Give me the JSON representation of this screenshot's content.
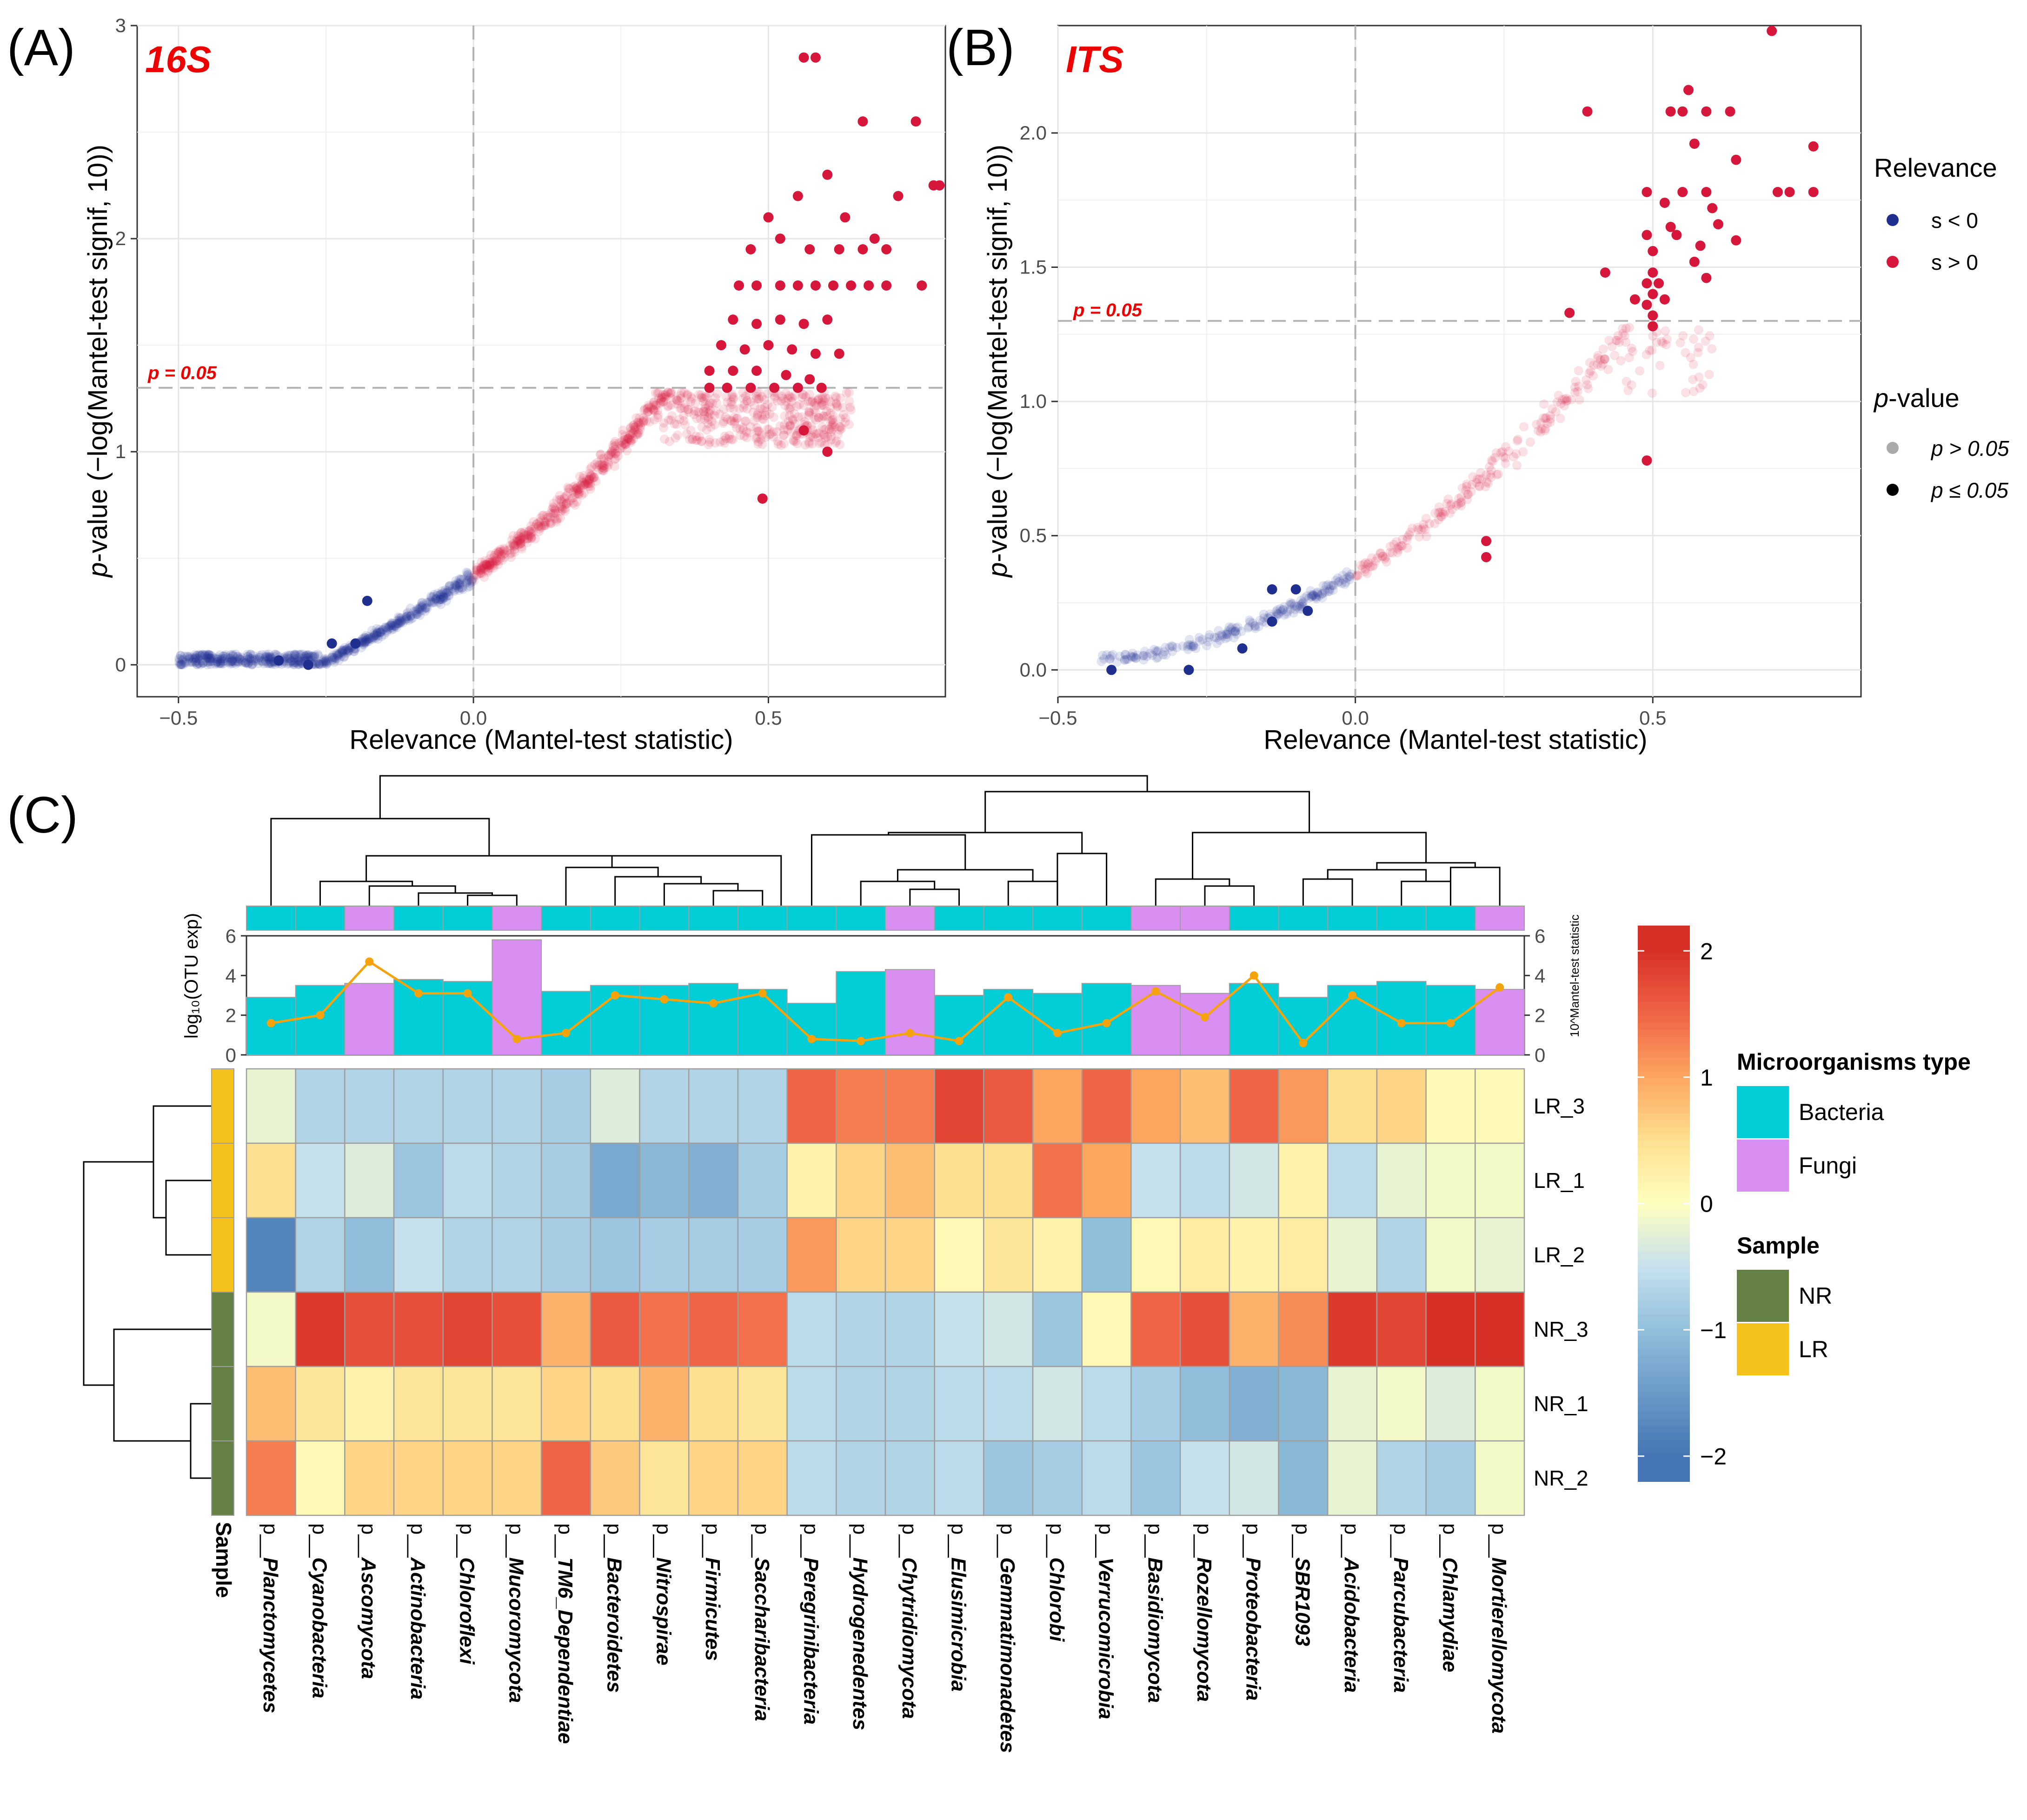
{
  "panels": {
    "A": {
      "tag": "(A)",
      "title": "16S"
    },
    "B": {
      "tag": "(B)",
      "title": "ITS"
    },
    "C": {
      "tag": "(C)"
    }
  },
  "colors": {
    "neg": "#1f2f8f",
    "pos": "#d6163a",
    "bacteria": "#00cdd6",
    "fungi": "#d98ef2",
    "nr": "#668146",
    "lr": "#f5c21b",
    "line": "#f5a30c",
    "title_red": "#ee0000"
  },
  "scatter_common": {
    "xlabel_main": "Relevance",
    "xlabel_paren": "(Mantel-test statistic)",
    "ylabel_p": "p",
    "ylabel_rest": "-value (−log(Mantel-test signif, 10))",
    "sig_label": "p = 0.05"
  },
  "legend_scatter": {
    "relevance_title": "Relevance",
    "relevance_items": [
      "s < 0",
      "s > 0"
    ],
    "pvalue_title_p": "p",
    "pvalue_title_rest": "-value",
    "pvalue_items": [
      "p > 0.05",
      "p ≤ 0.05"
    ]
  },
  "legend_heatmap": {
    "type_title": "Microorganisms type",
    "type_items": [
      "Bacteria",
      "Fungi"
    ],
    "sample_title": "Sample",
    "sample_items": [
      "NR",
      "LR"
    ],
    "colorbar_ticks": [
      "2",
      "1",
      "0",
      "−1",
      "−2"
    ]
  },
  "bar_axis": {
    "left_label": "log₁₀(OTU exp)",
    "right_label": "10^Mantel-test statistic",
    "ticks": [
      "6",
      "4",
      "2",
      "0"
    ]
  },
  "sample_axis_label": "Sample",
  "chart_data": [
    {
      "panel": "A",
      "type": "scatter",
      "title": "16S",
      "xlabel": "Relevance (Mantel-test statistic)",
      "ylabel": "p-value (−log(Mantel-test signif, 10))",
      "xlim": [
        -0.57,
        0.8
      ],
      "ylim": [
        -0.15,
        3
      ],
      "xticks": [
        -0.5,
        0.0,
        0.5
      ],
      "yticks": [
        0,
        1,
        2,
        3
      ],
      "threshold_y": 1.3,
      "threshold_label": "p = 0.05",
      "curve": {
        "model": "y = 0.42 + 1.9*x + 1.6*x^2 + 2.0*x^3 (approx. trend)"
      },
      "significant_points": [
        [
          0.56,
          2.85
        ],
        [
          0.58,
          2.85
        ],
        [
          0.66,
          2.55
        ],
        [
          0.75,
          2.55
        ],
        [
          0.78,
          2.25
        ],
        [
          0.79,
          2.25
        ],
        [
          0.5,
          2.1
        ],
        [
          0.55,
          2.2
        ],
        [
          0.6,
          2.3
        ],
        [
          0.63,
          2.1
        ],
        [
          0.68,
          2.0
        ],
        [
          0.72,
          2.2
        ],
        [
          0.47,
          1.95
        ],
        [
          0.52,
          2.0
        ],
        [
          0.57,
          1.95
        ],
        [
          0.62,
          1.95
        ],
        [
          0.66,
          1.95
        ],
        [
          0.7,
          1.95
        ],
        [
          0.45,
          1.78
        ],
        [
          0.48,
          1.78
        ],
        [
          0.52,
          1.78
        ],
        [
          0.55,
          1.78
        ],
        [
          0.58,
          1.78
        ],
        [
          0.61,
          1.78
        ],
        [
          0.64,
          1.78
        ],
        [
          0.67,
          1.78
        ],
        [
          0.7,
          1.78
        ],
        [
          0.76,
          1.78
        ],
        [
          0.44,
          1.62
        ],
        [
          0.48,
          1.6
        ],
        [
          0.52,
          1.62
        ],
        [
          0.56,
          1.6
        ],
        [
          0.6,
          1.62
        ],
        [
          0.42,
          1.5
        ],
        [
          0.46,
          1.48
        ],
        [
          0.5,
          1.5
        ],
        [
          0.54,
          1.48
        ],
        [
          0.58,
          1.46
        ],
        [
          0.62,
          1.46
        ],
        [
          0.4,
          1.38
        ],
        [
          0.44,
          1.38
        ],
        [
          0.48,
          1.38
        ],
        [
          0.53,
          1.36
        ],
        [
          0.57,
          1.34
        ],
        [
          0.4,
          1.3
        ],
        [
          0.43,
          1.3
        ],
        [
          0.47,
          1.3
        ],
        [
          0.51,
          1.3
        ],
        [
          0.55,
          1.3
        ],
        [
          0.59,
          1.3
        ],
        [
          0.6,
          1.0
        ],
        [
          0.49,
          0.78
        ],
        [
          0.56,
          1.1
        ],
        [
          -0.28,
          0.0
        ],
        [
          -0.33,
          0.02
        ],
        [
          -0.2,
          0.1
        ],
        [
          -0.18,
          0.3
        ],
        [
          -0.24,
          0.1
        ]
      ]
    },
    {
      "panel": "B",
      "type": "scatter",
      "title": "ITS",
      "xlabel": "Relevance (Mantel-test statistic)",
      "ylabel": "p-value (−log(Mantel-test signif, 10))",
      "xlim": [
        -0.5,
        0.85
      ],
      "ylim": [
        -0.1,
        2.4
      ],
      "xticks": [
        -0.5,
        0.0,
        0.5
      ],
      "yticks": [
        0.0,
        0.5,
        1.0,
        1.5,
        2.0
      ],
      "threshold_y": 1.3,
      "threshold_label": "p = 0.05",
      "significant_points": [
        [
          0.7,
          2.38
        ],
        [
          0.39,
          2.08
        ],
        [
          0.53,
          2.08
        ],
        [
          0.55,
          2.08
        ],
        [
          0.56,
          2.16
        ],
        [
          0.59,
          2.08
        ],
        [
          0.63,
          2.08
        ],
        [
          0.77,
          1.95
        ],
        [
          0.57,
          1.96
        ],
        [
          0.64,
          1.9
        ],
        [
          0.49,
          1.78
        ],
        [
          0.55,
          1.78
        ],
        [
          0.59,
          1.78
        ],
        [
          0.71,
          1.78
        ],
        [
          0.73,
          1.78
        ],
        [
          0.77,
          1.78
        ],
        [
          0.52,
          1.74
        ],
        [
          0.6,
          1.72
        ],
        [
          0.53,
          1.65
        ],
        [
          0.61,
          1.66
        ],
        [
          0.49,
          1.62
        ],
        [
          0.54,
          1.62
        ],
        [
          0.58,
          1.58
        ],
        [
          0.64,
          1.6
        ],
        [
          0.5,
          1.56
        ],
        [
          0.57,
          1.52
        ],
        [
          0.42,
          1.48
        ],
        [
          0.5,
          1.48
        ],
        [
          0.49,
          1.44
        ],
        [
          0.51,
          1.44
        ],
        [
          0.59,
          1.46
        ],
        [
          0.5,
          1.4
        ],
        [
          0.52,
          1.38
        ],
        [
          0.47,
          1.38
        ],
        [
          0.49,
          1.36
        ],
        [
          0.36,
          1.33
        ],
        [
          0.5,
          1.32
        ],
        [
          0.5,
          1.28
        ],
        [
          0.49,
          0.78
        ],
        [
          0.22,
          0.48
        ],
        [
          0.22,
          0.42
        ],
        [
          -0.1,
          0.3
        ],
        [
          -0.14,
          0.3
        ],
        [
          -0.08,
          0.22
        ],
        [
          -0.14,
          0.18
        ],
        [
          -0.19,
          0.08
        ],
        [
          -0.28,
          0.0
        ],
        [
          -0.41,
          0.0
        ]
      ]
    },
    {
      "panel": "C",
      "type": "heatmap",
      "rows": [
        "LR_3",
        "LR_1",
        "LR_2",
        "NR_3",
        "NR_1",
        "NR_2"
      ],
      "row_sample": [
        "LR",
        "LR",
        "LR",
        "NR",
        "NR",
        "NR"
      ],
      "columns": [
        "Planctomycetes",
        "Cyanobacteria",
        "Ascomycota",
        "Actinobacteria",
        "Chloroflexi",
        "Mucoromycota",
        "TM6_Dependentiae",
        "Bacteroidetes",
        "Nitrospirae",
        "Firmicutes",
        "Saccharibacteria",
        "Peregrinibacteria",
        "Hydrogenedentes",
        "Chytridiomycota",
        "Elusimicrobia",
        "Gemmatimonadetes",
        "Chlorobi",
        "Verrucomicrobia",
        "Basidiomycota",
        "Rozellomycota",
        "Proteobacteria",
        "SBR1093",
        "Acidobacteria",
        "Parcubacteria",
        "Chlamydiae",
        "Mortierellomycota"
      ],
      "column_prefix": "p__",
      "column_type": [
        "Bacteria",
        "Bacteria",
        "Fungi",
        "Bacteria",
        "Bacteria",
        "Fungi",
        "Bacteria",
        "Bacteria",
        "Bacteria",
        "Bacteria",
        "Bacteria",
        "Bacteria",
        "Bacteria",
        "Fungi",
        "Bacteria",
        "Bacteria",
        "Bacteria",
        "Bacteria",
        "Fungi",
        "Fungi",
        "Bacteria",
        "Bacteria",
        "Bacteria",
        "Bacteria",
        "Bacteria",
        "Fungi"
      ],
      "color_scale": {
        "min": -2,
        "max": 2
      },
      "values": [
        [
          -0.2,
          -0.7,
          -0.7,
          -0.7,
          -0.7,
          -0.7,
          -0.8,
          -0.3,
          -0.7,
          -0.7,
          -0.7,
          1.5,
          1.3,
          1.3,
          1.8,
          1.6,
          1.0,
          1.5,
          1.0,
          0.8,
          1.5,
          1.1,
          0.5,
          0.6,
          0.1,
          0.1
        ],
        [
          0.5,
          -0.5,
          -0.3,
          -0.9,
          -0.6,
          -0.7,
          -0.8,
          -1.3,
          -1.1,
          -1.2,
          -0.8,
          0.2,
          0.6,
          0.8,
          0.5,
          0.5,
          1.4,
          1.0,
          -0.5,
          -0.6,
          -0.4,
          0.2,
          -0.6,
          -0.2,
          -0.1,
          -0.1
        ],
        [
          -1.8,
          -0.7,
          -1.0,
          -0.5,
          -0.7,
          -0.7,
          -0.8,
          -0.9,
          -0.8,
          -0.8,
          -0.8,
          1.1,
          0.6,
          0.6,
          0.1,
          0.4,
          0.2,
          -1.0,
          0.1,
          0.3,
          0.2,
          0.3,
          -0.2,
          -0.7,
          -0.1,
          -0.2
        ],
        [
          -0.1,
          1.9,
          1.7,
          1.7,
          1.8,
          1.7,
          0.9,
          1.6,
          1.4,
          1.5,
          1.4,
          -0.6,
          -0.7,
          -0.7,
          -0.5,
          -0.4,
          -0.9,
          0.1,
          1.5,
          1.7,
          0.9,
          1.2,
          1.9,
          1.8,
          2.0,
          2.1
        ],
        [
          0.8,
          0.4,
          0.2,
          0.4,
          0.4,
          0.4,
          0.6,
          0.5,
          0.9,
          0.5,
          0.4,
          -0.6,
          -0.7,
          -0.7,
          -0.6,
          -0.6,
          -0.4,
          -0.6,
          -0.8,
          -1.0,
          -1.2,
          -1.1,
          -0.2,
          -0.1,
          -0.3,
          -0.1
        ],
        [
          1.3,
          0.1,
          0.6,
          0.6,
          0.6,
          0.6,
          1.5,
          0.7,
          0.4,
          0.6,
          0.6,
          -0.6,
          -0.7,
          -0.7,
          -0.6,
          -0.9,
          -0.8,
          -0.6,
          -0.9,
          -0.5,
          -0.4,
          -1.1,
          -0.2,
          -0.7,
          -0.8,
          -0.1
        ]
      ],
      "bar_log10_otu": [
        2.9,
        3.5,
        3.6,
        3.8,
        3.7,
        5.8,
        3.2,
        3.5,
        3.5,
        3.6,
        3.3,
        2.6,
        4.2,
        4.3,
        3.0,
        3.3,
        3.1,
        3.6,
        3.5,
        3.1,
        3.6,
        2.9,
        3.5,
        3.7,
        3.5,
        3.3
      ],
      "line_10_mantel": [
        1.6,
        2.0,
        4.7,
        3.1,
        3.1,
        0.8,
        1.1,
        3.0,
        2.8,
        2.6,
        3.1,
        0.8,
        0.7,
        1.1,
        0.7,
        2.9,
        1.1,
        1.6,
        3.2,
        1.9,
        4.0,
        0.6,
        3.0,
        1.6,
        1.6,
        3.4
      ],
      "bar_ylim": [
        0,
        6
      ]
    }
  ]
}
